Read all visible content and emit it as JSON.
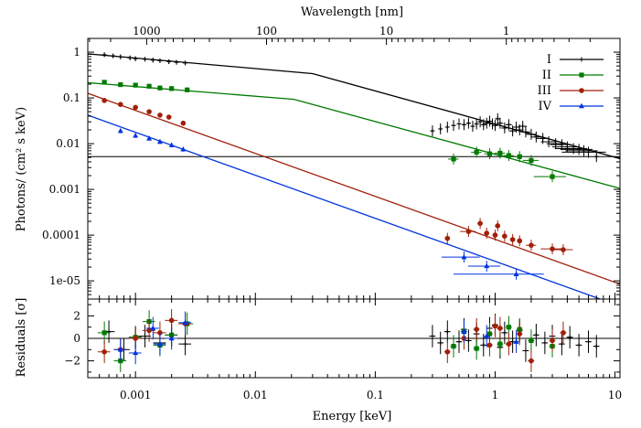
{
  "chart_data": {
    "type": "scatter",
    "top_axis": {
      "label": "Wavelength [nm]",
      "ticks": [
        {
          "label": "1000",
          "nm": 1000
        },
        {
          "label": "100",
          "nm": 100
        },
        {
          "label": "10",
          "nm": 10
        },
        {
          "label": "1",
          "nm": 1
        }
      ]
    },
    "xaxis": {
      "label": "Energy [keV]",
      "scale": "log",
      "range": [
        0.0004,
        11
      ],
      "ticks": [
        {
          "label": "0.001",
          "value": 0.001
        },
        {
          "label": "0.01",
          "value": 0.01
        },
        {
          "label": "0.1",
          "value": 0.1
        },
        {
          "label": "1",
          "value": 1
        },
        {
          "label": "10",
          "value": 10
        }
      ]
    },
    "upper_panel": {
      "ylabel": "Photons/ (cm² s keV)",
      "yscale": "log",
      "range": [
        4e-06,
        2
      ],
      "ticks": [
        {
          "label": "1",
          "value": 1
        },
        {
          "label": "0.1",
          "value": 0.1
        },
        {
          "label": "0.01",
          "value": 0.01
        },
        {
          "label": "0.001",
          "value": 0.001
        },
        {
          "label": "0.0001",
          "value": 0.0001
        },
        {
          "label": "1e-05",
          "value": 1e-05
        }
      ]
    },
    "lower_panel": {
      "ylabel": "Residuals [σ]",
      "range": [
        -3.5,
        3.5
      ],
      "ticks": [
        {
          "label": "2",
          "value": 2
        },
        {
          "label": "0",
          "value": 0
        },
        {
          "label": "−2",
          "value": -2
        }
      ]
    },
    "legend_position": "top-right",
    "series": [
      {
        "name": "I",
        "color": "#000000",
        "marker": "plus",
        "model": [
          [
            0.0004,
            0.92
          ],
          [
            0.03,
            0.34
          ],
          [
            11,
            0.0047
          ]
        ],
        "points": [
          [
            0.00055,
            0.88,
            6e-05
          ],
          [
            0.00065,
            0.83,
            6e-05
          ],
          [
            0.00075,
            0.79,
            6e-05
          ],
          [
            0.0009,
            0.75,
            6e-05
          ],
          [
            0.001,
            0.72,
            6e-05
          ],
          [
            0.0012,
            0.7,
            6e-05
          ],
          [
            0.0014,
            0.67,
            6e-05
          ],
          [
            0.0016,
            0.65,
            6e-05
          ],
          [
            0.0019,
            0.62,
            6e-05
          ],
          [
            0.0022,
            0.6,
            6e-05
          ],
          [
            0.0026,
            0.58,
            6e-05
          ],
          [
            0.3,
            0.019,
            0.03
          ],
          [
            0.35,
            0.021,
            0.03
          ],
          [
            0.4,
            0.023,
            0.03
          ],
          [
            0.45,
            0.025,
            0.04
          ],
          [
            0.5,
            0.027,
            0.04
          ],
          [
            0.55,
            0.026,
            0.04
          ],
          [
            0.6,
            0.028,
            0.04
          ],
          [
            0.65,
            0.024,
            0.04
          ],
          [
            0.7,
            0.027,
            0.04
          ],
          [
            0.75,
            0.03,
            0.04
          ],
          [
            0.8,
            0.026,
            0.05
          ],
          [
            0.85,
            0.028,
            0.05
          ],
          [
            0.9,
            0.031,
            0.05
          ],
          [
            0.95,
            0.027,
            0.05
          ],
          [
            1.0,
            0.025,
            0.05
          ],
          [
            1.05,
            0.035,
            0.05
          ],
          [
            1.1,
            0.028,
            0.06
          ],
          [
            1.2,
            0.022,
            0.06
          ],
          [
            1.3,
            0.026,
            0.06
          ],
          [
            1.4,
            0.019,
            0.07
          ],
          [
            1.5,
            0.023,
            0.07
          ],
          [
            1.6,
            0.02,
            0.08
          ],
          [
            1.7,
            0.024,
            0.08
          ],
          [
            1.8,
            0.018,
            0.09
          ],
          [
            2.0,
            0.016,
            0.1
          ],
          [
            2.2,
            0.014,
            0.1
          ],
          [
            2.5,
            0.013,
            0.12
          ],
          [
            2.8,
            0.011,
            0.14
          ],
          [
            3.2,
            0.01,
            0.16
          ],
          [
            3.6,
            0.0095,
            0.2
          ],
          [
            4.0,
            0.0085,
            0.25
          ],
          [
            4.5,
            0.0078,
            0.3
          ],
          [
            5.0,
            0.0075,
            0.3
          ],
          [
            5.5,
            0.007,
            0.3
          ],
          [
            6.0,
            0.0065,
            0.4
          ],
          [
            7.0,
            0.0052,
            1.2
          ]
        ],
        "residuals": [
          [
            0.0006,
            0.6
          ],
          [
            0.0008,
            -1.0
          ],
          [
            0.001,
            0.1
          ],
          [
            0.0012,
            0.2
          ],
          [
            0.0016,
            -0.4
          ],
          [
            0.002,
            0.3
          ],
          [
            0.0026,
            -0.5
          ],
          [
            0.3,
            0.2
          ],
          [
            0.35,
            -0.4
          ],
          [
            0.4,
            0.6
          ],
          [
            0.5,
            -0.3
          ],
          [
            0.55,
            0.8
          ],
          [
            0.6,
            -0.2
          ],
          [
            0.7,
            0.4
          ],
          [
            0.8,
            -0.6
          ],
          [
            0.9,
            0.9
          ],
          [
            1.0,
            1.2
          ],
          [
            1.1,
            -0.8
          ],
          [
            1.2,
            0.5
          ],
          [
            1.4,
            -0.3
          ],
          [
            1.6,
            0.7
          ],
          [
            1.8,
            -1.1
          ],
          [
            2.2,
            0.3
          ],
          [
            2.6,
            -0.4
          ],
          [
            3.0,
            0.2
          ],
          [
            3.6,
            -0.5
          ],
          [
            4.2,
            0.1
          ],
          [
            5.0,
            -0.6
          ],
          [
            6.0,
            -0.3
          ],
          [
            7.0,
            -0.7
          ]
        ]
      },
      {
        "name": "II",
        "color": "#007a00",
        "marker": "square",
        "model": [
          [
            0.0004,
            0.215
          ],
          [
            0.021,
            0.093
          ],
          [
            11,
            0.00105
          ]
        ],
        "points": [
          [
            0.00055,
            0.22,
            6e-05
          ],
          [
            0.00075,
            0.195,
            6e-05
          ],
          [
            0.001,
            0.19,
            6e-05
          ],
          [
            0.0013,
            0.18,
            6e-05
          ],
          [
            0.0016,
            0.165,
            6e-05
          ],
          [
            0.002,
            0.16,
            6e-05
          ],
          [
            0.0027,
            0.15,
            6e-05
          ],
          [
            0.45,
            0.0046,
            0.1
          ],
          [
            0.7,
            0.0065,
            0.1
          ],
          [
            0.9,
            0.006,
            0.1
          ],
          [
            1.1,
            0.0062,
            0.1
          ],
          [
            1.3,
            0.0055,
            0.1
          ],
          [
            1.6,
            0.0052,
            0.1
          ],
          [
            2.0,
            0.0043,
            0.15
          ],
          [
            3.0,
            0.0019,
            0.3
          ]
        ],
        "residuals": [
          [
            0.00055,
            0.5
          ],
          [
            0.00075,
            -2.0
          ],
          [
            0.001,
            0.1
          ],
          [
            0.0013,
            1.5
          ],
          [
            0.0016,
            -0.6
          ],
          [
            0.002,
            0.3
          ],
          [
            0.0027,
            1.3
          ],
          [
            0.45,
            -0.7
          ],
          [
            0.55,
            0.6
          ],
          [
            0.7,
            -0.9
          ],
          [
            0.9,
            0.4
          ],
          [
            1.1,
            -0.5
          ],
          [
            1.3,
            1.0
          ],
          [
            1.6,
            0.8
          ],
          [
            2.0,
            -0.2
          ],
          [
            3.0,
            -0.7
          ]
        ]
      },
      {
        "name": "III",
        "color": "#a0200a",
        "marker": "circle",
        "model": [
          [
            0.0004,
            0.126
          ],
          [
            11,
            8.5e-06
          ]
        ],
        "points": [
          [
            0.00055,
            0.088,
            6e-05
          ],
          [
            0.00075,
            0.072,
            6e-05
          ],
          [
            0.001,
            0.062,
            6e-05
          ],
          [
            0.0013,
            0.05,
            6e-05
          ],
          [
            0.0016,
            0.042,
            6e-05
          ],
          [
            0.0019,
            0.038,
            6e-05
          ],
          [
            0.0025,
            0.028,
            0.0004
          ],
          [
            0.4,
            8.5e-05,
            0.05
          ],
          [
            0.6,
            0.00012,
            0.15
          ],
          [
            0.75,
            0.00018,
            0.05
          ],
          [
            0.85,
            0.00011,
            0.05
          ],
          [
            1.0,
            0.0001,
            0.05
          ],
          [
            1.05,
            0.00016,
            0.05
          ],
          [
            1.2,
            9.5e-05,
            0.05
          ],
          [
            1.4,
            8e-05,
            0.05
          ],
          [
            1.6,
            7.5e-05,
            0.05
          ],
          [
            2.0,
            6e-05,
            0.1
          ],
          [
            3.0,
            5e-05,
            0.2
          ],
          [
            3.7,
            4.8e-05,
            0.2
          ]
        ],
        "residuals": [
          [
            0.00055,
            -1.2
          ],
          [
            0.00075,
            -1.0
          ],
          [
            0.001,
            0.0
          ],
          [
            0.0013,
            0.7
          ],
          [
            0.0016,
            0.5
          ],
          [
            0.002,
            1.6
          ],
          [
            0.0026,
            1.3
          ],
          [
            0.4,
            -1.2
          ],
          [
            0.55,
            0.0
          ],
          [
            0.7,
            0.8
          ],
          [
            0.9,
            -0.6
          ],
          [
            1.0,
            1.1
          ],
          [
            1.1,
            0.9
          ],
          [
            1.3,
            -0.5
          ],
          [
            1.6,
            0.4
          ],
          [
            2.0,
            -2.0
          ],
          [
            3.0,
            -0.2
          ],
          [
            3.7,
            0.5
          ]
        ]
      },
      {
        "name": "IV",
        "color": "#0033dd",
        "marker": "triangle",
        "model": [
          [
            0.0004,
            0.042
          ],
          [
            11,
            2.8e-06
          ]
        ],
        "points": [
          [
            0.00075,
            0.019,
            6e-05
          ],
          [
            0.001,
            0.015,
            6e-05
          ],
          [
            0.0013,
            0.013,
            6e-05
          ],
          [
            0.0016,
            0.011,
            6e-05
          ],
          [
            0.002,
            0.0093,
            6e-05
          ],
          [
            0.0025,
            0.0075,
            0.0004
          ],
          [
            0.55,
            3.3e-05,
            0.35
          ],
          [
            0.85,
            2.1e-05,
            0.3
          ],
          [
            1.5,
            1.4e-05,
            0.7
          ]
        ],
        "residuals": [
          [
            0.00075,
            -1.0
          ],
          [
            0.001,
            -1.3
          ],
          [
            0.0014,
            0.9
          ],
          [
            0.0016,
            -0.5
          ],
          [
            0.002,
            0.0
          ],
          [
            0.0026,
            1.4
          ],
          [
            0.55,
            0.6
          ],
          [
            0.85,
            0.2
          ],
          [
            1.5,
            -0.3
          ]
        ]
      }
    ]
  }
}
